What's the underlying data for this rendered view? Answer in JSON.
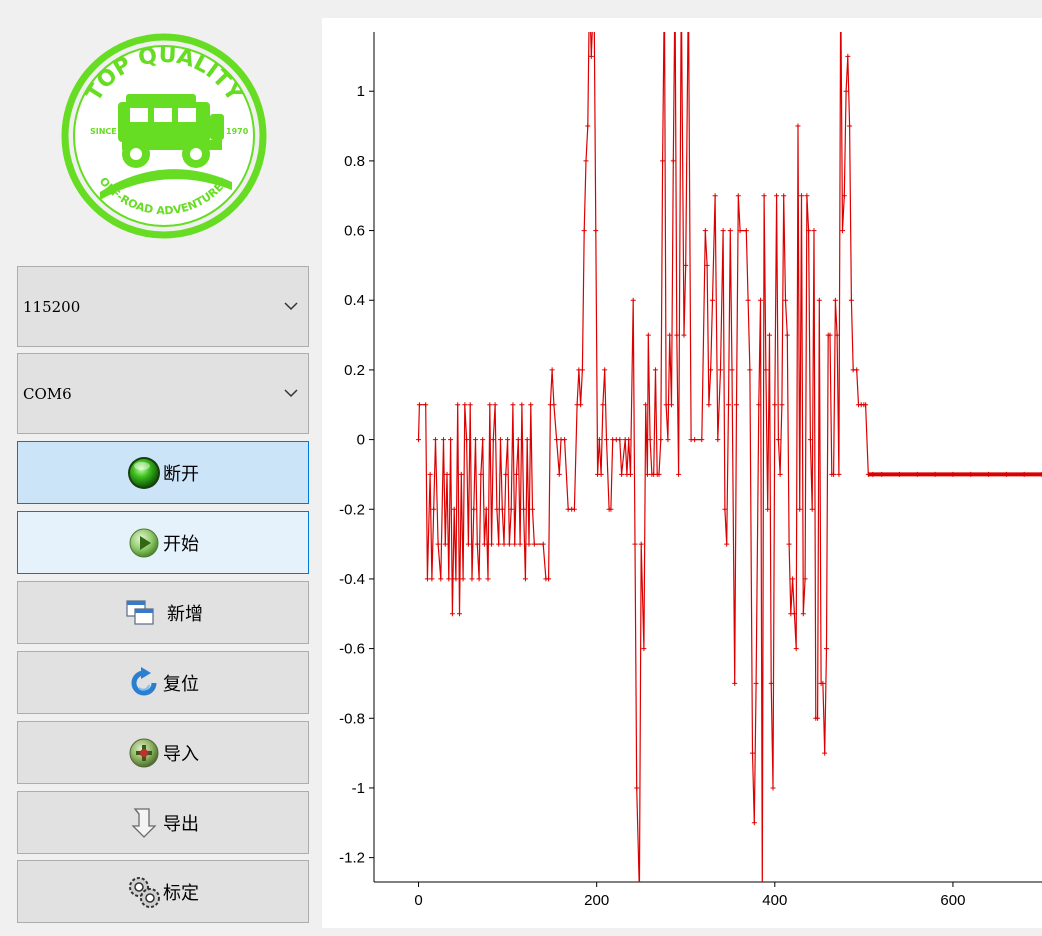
{
  "sidebar": {
    "logo": {
      "text_top": "TOP QUALITY",
      "text_bottom": "OFF-ROAD ADVENTURES",
      "since": "SINCE",
      "year": "1970",
      "color": "#66dd22"
    },
    "baud_select": {
      "value": "115200"
    },
    "port_select": {
      "value": "COM6"
    },
    "buttons": [
      {
        "id": "disconnect",
        "label": "断开",
        "icon": "green-orb-icon"
      },
      {
        "id": "start",
        "label": "开始",
        "icon": "play-icon"
      },
      {
        "id": "add",
        "label": "新增",
        "icon": "windows-icon"
      },
      {
        "id": "reset",
        "label": "复位",
        "icon": "refresh-icon"
      },
      {
        "id": "import",
        "label": "导入",
        "icon": "import-icon"
      },
      {
        "id": "export",
        "label": "导出",
        "icon": "export-icon"
      },
      {
        "id": "calibrate",
        "label": "标定",
        "icon": "gears-icon"
      }
    ]
  },
  "chart_data": {
    "type": "line",
    "title": "",
    "xlabel": "",
    "ylabel": "",
    "xlim": [
      -50,
      700
    ],
    "ylim": [
      -1.27,
      1.17
    ],
    "x_ticks": [
      "0",
      "200",
      "400",
      "600"
    ],
    "y_ticks": [
      "1",
      "0.8",
      "0.6",
      "0.4",
      "0.2",
      "0",
      "-0.2",
      "-0.4",
      "-0.6",
      "-0.8",
      "-1",
      "-1.2"
    ],
    "grid": false,
    "legend": "none",
    "line_color": "#dd0000",
    "series": [
      {
        "points": [
          [
            0,
            0
          ],
          [
            1,
            0.1
          ],
          [
            8,
            0.1
          ],
          [
            10,
            -0.4
          ],
          [
            13,
            -0.1
          ],
          [
            15,
            -0.4
          ],
          [
            17,
            -0.2
          ],
          [
            19,
            0
          ],
          [
            22,
            -0.3
          ],
          [
            25,
            -0.4
          ],
          [
            28,
            0
          ],
          [
            30,
            -0.3
          ],
          [
            32,
            -0.1
          ],
          [
            34,
            -0.4
          ],
          [
            36,
            0
          ],
          [
            38,
            -0.5
          ],
          [
            40,
            -0.2
          ],
          [
            42,
            -0.4
          ],
          [
            44,
            0.1
          ],
          [
            46,
            -0.5
          ],
          [
            48,
            -0.1
          ],
          [
            50,
            -0.4
          ],
          [
            52,
            0.1
          ],
          [
            54,
            0
          ],
          [
            56,
            -0.3
          ],
          [
            58,
            0.1
          ],
          [
            60,
            -0.4
          ],
          [
            62,
            -0.2
          ],
          [
            64,
            0
          ],
          [
            66,
            -0.3
          ],
          [
            68,
            -0.4
          ],
          [
            70,
            -0.1
          ],
          [
            72,
            0
          ],
          [
            74,
            -0.3
          ],
          [
            76,
            -0.2
          ],
          [
            78,
            -0.4
          ],
          [
            80,
            0.1
          ],
          [
            82,
            -0.3
          ],
          [
            84,
            0
          ],
          [
            86,
            0.1
          ],
          [
            88,
            -0.2
          ],
          [
            90,
            -0.3
          ],
          [
            92,
            0
          ],
          [
            94,
            -0.2
          ],
          [
            96,
            -0.3
          ],
          [
            98,
            -0.1
          ],
          [
            100,
            0
          ],
          [
            102,
            -0.3
          ],
          [
            104,
            -0.2
          ],
          [
            106,
            0.1
          ],
          [
            108,
            -0.3
          ],
          [
            110,
            -0.1
          ],
          [
            112,
            0
          ],
          [
            114,
            -0.3
          ],
          [
            116,
            0.1
          ],
          [
            118,
            -0.2
          ],
          [
            120,
            -0.4
          ],
          [
            122,
            0
          ],
          [
            124,
            -0.3
          ],
          [
            126,
            0.1
          ],
          [
            128,
            -0.2
          ],
          [
            130,
            -0.3
          ],
          [
            140,
            -0.3
          ],
          [
            143,
            -0.4
          ],
          [
            146,
            -0.4
          ],
          [
            148,
            0.1
          ],
          [
            150,
            0.2
          ],
          [
            152,
            0.1
          ],
          [
            155,
            0
          ],
          [
            158,
            -0.1
          ],
          [
            160,
            0
          ],
          [
            164,
            0
          ],
          [
            168,
            -0.2
          ],
          [
            172,
            -0.2
          ],
          [
            175,
            -0.2
          ],
          [
            178,
            0.1
          ],
          [
            180,
            0.2
          ],
          [
            182,
            0.1
          ],
          [
            184,
            0.2
          ],
          [
            186,
            0.6
          ],
          [
            188,
            0.8
          ],
          [
            190,
            0.9
          ],
          [
            192,
            1.3
          ],
          [
            194,
            1.1
          ],
          [
            197,
            1.3
          ],
          [
            199,
            0.6
          ],
          [
            201,
            -0.1
          ],
          [
            203,
            0
          ],
          [
            205,
            -0.1
          ],
          [
            207,
            0.1
          ],
          [
            209,
            0.2
          ],
          [
            211,
            0
          ],
          [
            214,
            -0.2
          ],
          [
            216,
            -0.2
          ],
          [
            218,
            0
          ],
          [
            222,
            0
          ],
          [
            226,
            0
          ],
          [
            228,
            -0.1
          ],
          [
            232,
            0
          ],
          [
            234,
            -0.1
          ],
          [
            236,
            0
          ],
          [
            238,
            -0.1
          ],
          [
            241,
            0.4
          ],
          [
            243,
            -0.3
          ],
          [
            245,
            -1
          ],
          [
            248,
            -1.3
          ],
          [
            250,
            -0.3
          ],
          [
            253,
            -0.6
          ],
          [
            255,
            0.1
          ],
          [
            257,
            -0.1
          ],
          [
            258,
            0.3
          ],
          [
            260,
            0
          ],
          [
            262,
            -0.1
          ],
          [
            264,
            -0.1
          ],
          [
            266,
            0.2
          ],
          [
            268,
            -0.1
          ],
          [
            270,
            -0.1
          ],
          [
            272,
            0
          ],
          [
            274,
            0.8
          ],
          [
            276,
            1.3
          ],
          [
            278,
            0.1
          ],
          [
            280,
            0
          ],
          [
            282,
            0.3
          ],
          [
            284,
            0.1
          ],
          [
            286,
            0.8
          ],
          [
            288,
            1.3
          ],
          [
            290,
            0.3
          ],
          [
            292,
            -0.1
          ],
          [
            295,
            1.3
          ],
          [
            298,
            0.3
          ],
          [
            300,
            0.5
          ],
          [
            303,
            1.3
          ],
          [
            306,
            0
          ],
          [
            310,
            0
          ],
          [
            318,
            0
          ],
          [
            322,
            0.6
          ],
          [
            324,
            0.5
          ],
          [
            326,
            0.1
          ],
          [
            328,
            0.2
          ],
          [
            330,
            0.4
          ],
          [
            333,
            0.7
          ],
          [
            336,
            0
          ],
          [
            339,
            0.2
          ],
          [
            342,
            0.6
          ],
          [
            344,
            -0.2
          ],
          [
            346,
            -0.3
          ],
          [
            348,
            0.1
          ],
          [
            350,
            0.6
          ],
          [
            352,
            0.2
          ],
          [
            355,
            -0.7
          ],
          [
            357,
            0.1
          ],
          [
            359,
            0.7
          ],
          [
            361,
            0.6
          ],
          [
            368,
            0.6
          ],
          [
            370,
            0.4
          ],
          [
            372,
            0.2
          ],
          [
            375,
            -0.9
          ],
          [
            377,
            -1.1
          ],
          [
            379,
            -0.7
          ],
          [
            382,
            0.1
          ],
          [
            384,
            0.4
          ],
          [
            386,
            -1.3
          ],
          [
            388,
            0.7
          ],
          [
            390,
            0.2
          ],
          [
            392,
            -0.2
          ],
          [
            394,
            0.3
          ],
          [
            396,
            -0.7
          ],
          [
            398,
            -1
          ],
          [
            400,
            0.1
          ],
          [
            402,
            0.7
          ],
          [
            404,
            0
          ],
          [
            406,
            -0.1
          ],
          [
            408,
            0.1
          ],
          [
            410,
            0.7
          ],
          [
            412,
            0.4
          ],
          [
            414,
            0.3
          ],
          [
            416,
            -0.3
          ],
          [
            418,
            -0.5
          ],
          [
            420,
            -0.4
          ],
          [
            422,
            -0.5
          ],
          [
            424,
            -0.6
          ],
          [
            426,
            0.9
          ],
          [
            428,
            -0.2
          ],
          [
            430,
            0.7
          ],
          [
            432,
            -0.5
          ],
          [
            434,
            -0.4
          ],
          [
            436,
            0.7
          ],
          [
            438,
            0.6
          ],
          [
            440,
            0
          ],
          [
            442,
            -0.2
          ],
          [
            444,
            0.6
          ],
          [
            446,
            -0.8
          ],
          [
            448,
            -0.8
          ],
          [
            450,
            0.4
          ],
          [
            452,
            -0.7
          ],
          [
            454,
            -0.7
          ],
          [
            456,
            -0.9
          ],
          [
            458,
            -0.6
          ],
          [
            460,
            0.3
          ],
          [
            462,
            0.3
          ],
          [
            464,
            -0.1
          ],
          [
            466,
            -0.1
          ],
          [
            468,
            0.4
          ],
          [
            470,
            0.3
          ],
          [
            472,
            -0.1
          ],
          [
            474,
            1.3
          ],
          [
            476,
            0.6
          ],
          [
            478,
            0.7
          ],
          [
            480,
            1.0
          ],
          [
            482,
            1.1
          ],
          [
            484,
            0.9
          ],
          [
            486,
            0.4
          ],
          [
            488,
            0.2
          ],
          [
            492,
            0.2
          ],
          [
            494,
            0.1
          ],
          [
            497,
            0.1
          ],
          [
            500,
            0.1
          ],
          [
            502,
            0.1
          ],
          [
            505,
            -0.1
          ],
          [
            510,
            -0.1
          ],
          [
            520,
            -0.1
          ],
          [
            540,
            -0.1
          ],
          [
            560,
            -0.1
          ],
          [
            580,
            -0.1
          ],
          [
            600,
            -0.1
          ],
          [
            620,
            -0.1
          ],
          [
            640,
            -0.1
          ],
          [
            660,
            -0.1
          ],
          [
            680,
            -0.1
          ],
          [
            700,
            -0.1
          ]
        ]
      }
    ]
  }
}
